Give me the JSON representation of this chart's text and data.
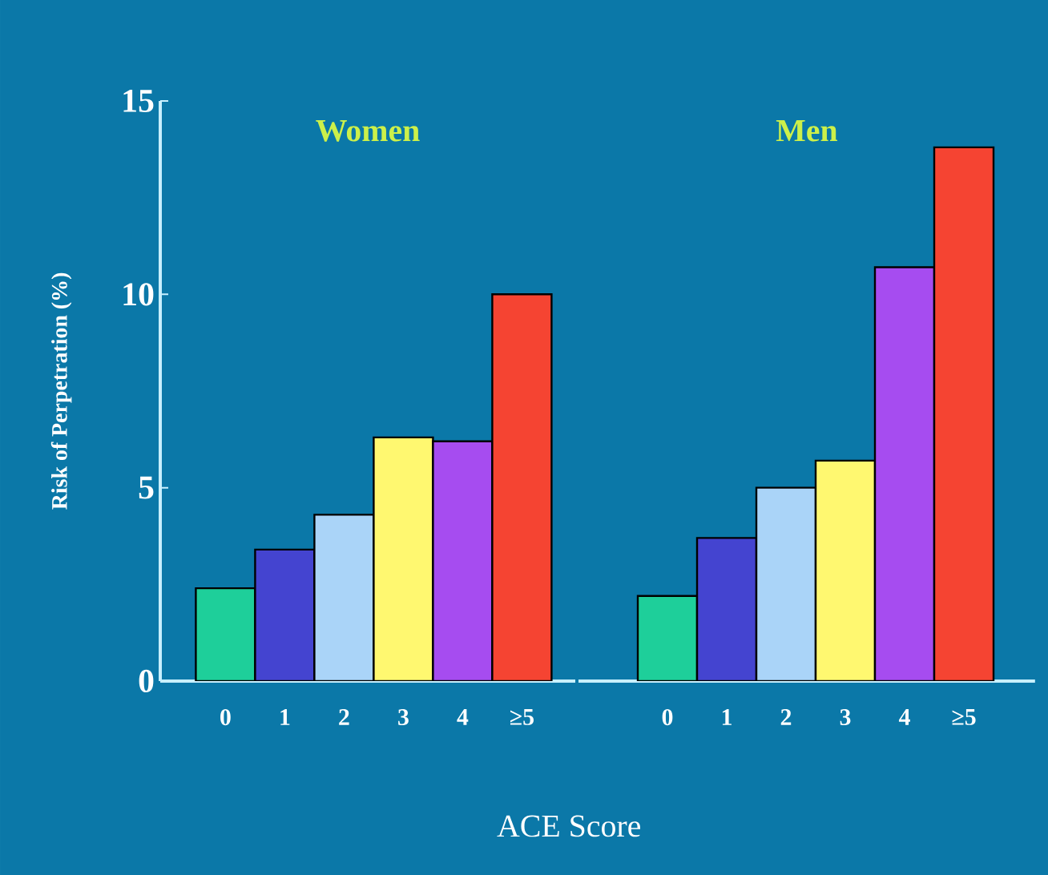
{
  "chart_data": [
    {
      "type": "bar",
      "title": "Women",
      "xlabel": "ACE Score",
      "ylabel": "Risk of Perpetration (%)",
      "categories": [
        "0",
        "1",
        "2",
        "3",
        "4",
        "≥5"
      ],
      "values": [
        2.4,
        3.4,
        4.3,
        6.3,
        6.2,
        10.0
      ],
      "colors": [
        "#1ecf9a",
        "#4444d0",
        "#aad4f8",
        "#fff870",
        "#a64cf0",
        "#f54432"
      ],
      "ylim": [
        0,
        15
      ],
      "yticks": [
        0,
        5,
        10,
        15
      ]
    },
    {
      "type": "bar",
      "title": "Men",
      "categories": [
        "0",
        "1",
        "2",
        "3",
        "4",
        "≥5"
      ],
      "values": [
        2.2,
        3.7,
        5.0,
        5.7,
        10.7,
        13.8
      ],
      "colors": [
        "#1ecf9a",
        "#4444d0",
        "#aad4f8",
        "#fff870",
        "#a64cf0",
        "#f54432"
      ],
      "ylim": [
        0,
        15
      ],
      "tick_labels": "x"
    }
  ]
}
